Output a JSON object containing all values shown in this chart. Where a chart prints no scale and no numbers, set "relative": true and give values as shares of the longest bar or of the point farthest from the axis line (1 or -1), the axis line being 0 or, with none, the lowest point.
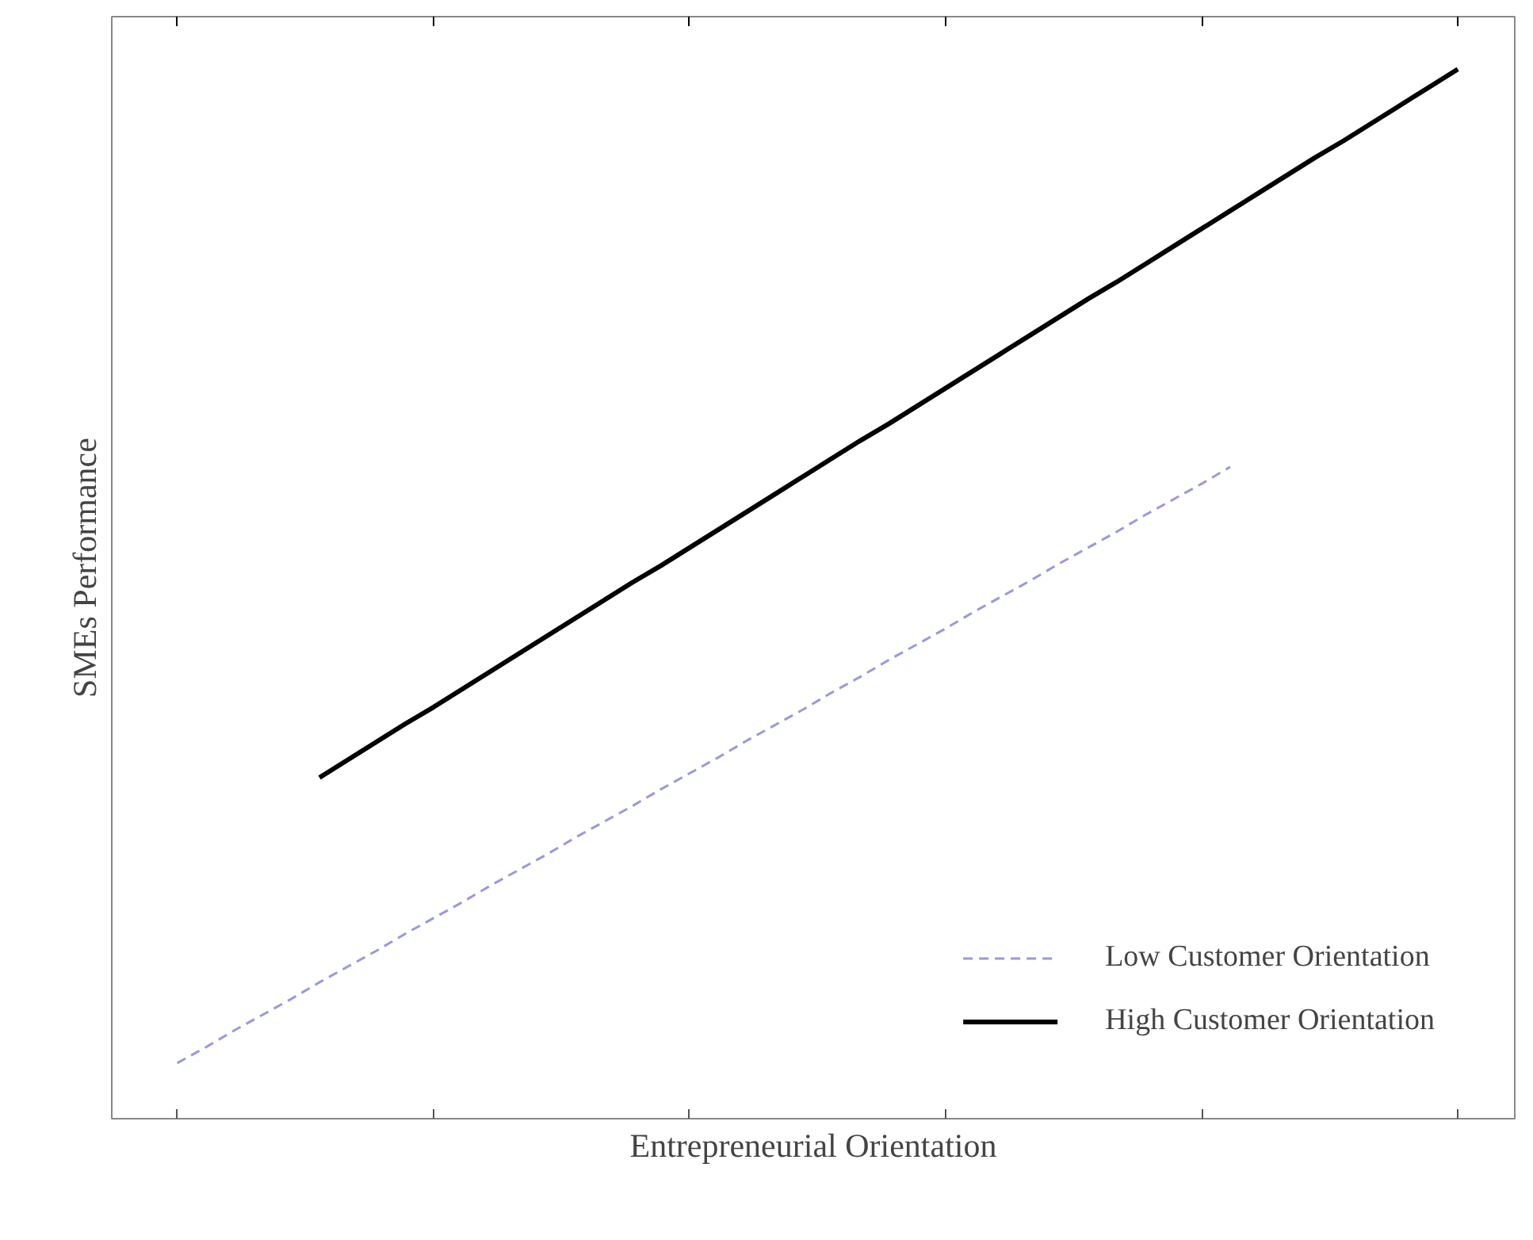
{
  "chart_data": {
    "type": "line",
    "xlabel": "Entrepreneurial Orientation",
    "ylabel": "SMEs Performance",
    "relative": true,
    "categories": [
      null,
      null,
      null,
      null,
      null,
      null,
      null,
      null,
      null,
      null,
      null,
      null,
      null,
      null,
      null,
      null,
      null,
      null,
      null,
      null,
      null,
      null,
      null,
      null,
      null,
      null,
      null,
      null,
      null,
      null,
      null,
      null,
      null,
      null,
      null,
      null,
      null,
      null,
      null,
      null,
      null,
      null,
      null,
      null,
      null,
      null
    ],
    "series": [
      {
        "name": "Low Customer Orientation",
        "color": "#9a9ad6",
        "line_style": "dashed",
        "values": [
          0.053,
          0.068,
          0.084,
          0.099,
          0.114,
          0.13,
          0.145,
          0.16,
          0.176,
          0.191,
          0.206,
          0.222,
          0.237,
          0.252,
          0.268,
          0.283,
          0.298,
          0.314,
          0.329,
          0.344,
          0.36,
          0.375,
          0.39,
          0.406,
          0.421,
          0.437,
          0.452,
          0.467,
          0.483,
          0.498,
          0.513,
          0.529,
          0.544,
          0.559,
          0.575,
          0.59,
          0.605,
          0.621,
          null,
          null,
          null,
          null,
          null,
          null,
          null,
          null
        ]
      },
      {
        "name": "High Customer Orientation",
        "color": "#000000",
        "line_style": "solid",
        "values": [
          null,
          null,
          null,
          null,
          null,
          0.325,
          0.342,
          0.359,
          0.376,
          0.392,
          0.409,
          0.426,
          0.443,
          0.46,
          0.477,
          0.494,
          0.511,
          0.527,
          0.544,
          0.561,
          0.578,
          0.595,
          0.612,
          0.629,
          0.646,
          0.662,
          0.679,
          0.696,
          0.713,
          0.73,
          0.747,
          0.764,
          0.781,
          0.797,
          0.814,
          0.831,
          0.848,
          0.865,
          0.882,
          0.899,
          0.916,
          0.932,
          0.949,
          0.966,
          0.983,
          1.0
        ]
      }
    ],
    "legend": "bottom right",
    "grid": false,
    "marker": "none"
  }
}
